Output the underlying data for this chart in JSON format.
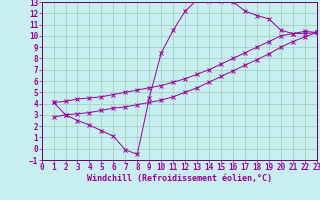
{
  "xlabel": "Windchill (Refroidissement éolien,°C)",
  "xlim": [
    0,
    23
  ],
  "ylim": [
    -1,
    13
  ],
  "xticks": [
    0,
    1,
    2,
    3,
    4,
    5,
    6,
    7,
    8,
    9,
    10,
    11,
    12,
    13,
    14,
    15,
    16,
    17,
    18,
    19,
    20,
    21,
    22,
    23
  ],
  "yticks": [
    -1,
    0,
    1,
    2,
    3,
    4,
    5,
    6,
    7,
    8,
    9,
    10,
    11,
    12,
    13
  ],
  "bg_color": "#c8eef0",
  "grid_color": "#99ccbb",
  "line_color": "#990099",
  "spine_color": "#660066",
  "line1_x": [
    1,
    2,
    3,
    4,
    5,
    6,
    7,
    8,
    9,
    10,
    11,
    12,
    13,
    14,
    15,
    16,
    17,
    18,
    19,
    20,
    21,
    22,
    23
  ],
  "line1_y": [
    4.1,
    3.0,
    2.5,
    2.1,
    1.6,
    1.1,
    -0.1,
    -0.5,
    4.5,
    8.5,
    10.5,
    12.2,
    13.2,
    13.1,
    13.1,
    13.0,
    12.2,
    11.8,
    11.5,
    10.5,
    10.2,
    10.2,
    10.3
  ],
  "line2_x": [
    1,
    2,
    3,
    4,
    5,
    6,
    7,
    8,
    9,
    10,
    11,
    12,
    13,
    14,
    15,
    16,
    17,
    18,
    19,
    20,
    21,
    22,
    23
  ],
  "line2_y": [
    4.1,
    4.2,
    4.4,
    4.5,
    4.6,
    4.8,
    5.0,
    5.2,
    5.4,
    5.6,
    5.9,
    6.2,
    6.6,
    7.0,
    7.5,
    8.0,
    8.5,
    9.0,
    9.5,
    10.0,
    10.2,
    10.4,
    10.3
  ],
  "line3_x": [
    1,
    2,
    3,
    4,
    5,
    6,
    7,
    8,
    9,
    10,
    11,
    12,
    13,
    14,
    15,
    16,
    17,
    18,
    19,
    20,
    21,
    22,
    23
  ],
  "line3_y": [
    2.8,
    3.0,
    3.1,
    3.2,
    3.4,
    3.6,
    3.7,
    3.9,
    4.1,
    4.3,
    4.6,
    5.0,
    5.4,
    5.9,
    6.4,
    6.9,
    7.4,
    7.9,
    8.4,
    9.0,
    9.5,
    9.9,
    10.3
  ],
  "fontsize_tick": 5.5,
  "fontsize_label": 6.0
}
